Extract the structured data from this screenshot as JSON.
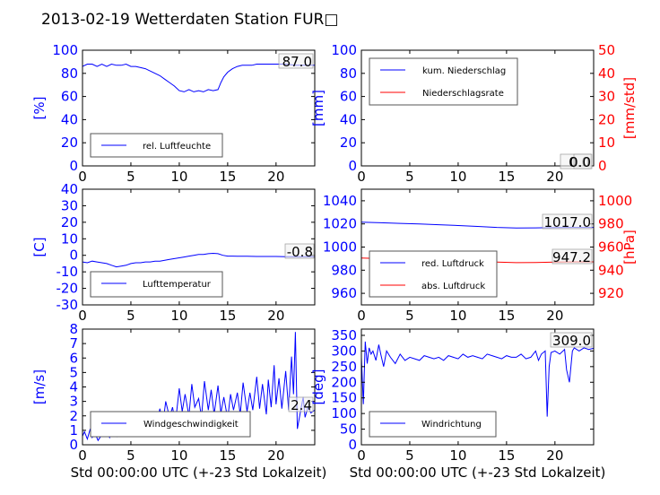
{
  "page_title": "2013-02-19 Wetterdaten Station FUR□",
  "colors": {
    "blue": "#0000ff",
    "red": "#ff0000",
    "black": "#000000"
  },
  "chart_data": [
    {
      "type": "line",
      "id": "humidity",
      "x_ticks": [
        0,
        5,
        10,
        15,
        20
      ],
      "xlim": [
        0,
        24
      ],
      "ylabel": "[%]",
      "ylim": [
        0,
        100
      ],
      "y_ticks": [
        0,
        20,
        40,
        60,
        80,
        100
      ],
      "last_value": "87.0",
      "legend_position": "lower-left",
      "series": [
        {
          "name": "rel. Luftfeuchte",
          "color": "#0000ff",
          "x": [
            0,
            0.5,
            1,
            1.5,
            2,
            2.5,
            3,
            3.5,
            4,
            4.5,
            5,
            5.5,
            6,
            6.5,
            7,
            7.5,
            8,
            8.5,
            9,
            9.5,
            10,
            10.5,
            11,
            11.5,
            12,
            12.5,
            13,
            13.5,
            14,
            14.3,
            14.6,
            15,
            15.5,
            16,
            16.5,
            17,
            17.5,
            18,
            18.5,
            19,
            19.5,
            20,
            21,
            22,
            23,
            24
          ],
          "y": [
            86,
            88,
            88,
            86,
            88,
            86,
            88,
            87,
            87,
            88,
            86,
            86,
            85,
            84,
            82,
            80,
            78,
            75,
            72,
            69,
            65,
            64,
            66,
            64,
            65,
            64,
            66,
            65,
            66,
            72,
            77,
            81,
            84,
            86,
            87,
            87,
            87,
            88,
            88,
            88,
            88,
            88,
            88,
            87,
            87,
            87
          ]
        }
      ]
    },
    {
      "type": "line",
      "id": "precipitation",
      "x_ticks": [
        0,
        5,
        10,
        15,
        20
      ],
      "xlim": [
        0,
        24
      ],
      "ylabel": "[mm]",
      "ylim": [
        0,
        100
      ],
      "y_ticks": [
        0,
        20,
        40,
        60,
        80,
        100
      ],
      "y2label": "[mm/std]",
      "y2lim": [
        0,
        50
      ],
      "y2_ticks": [
        0,
        10,
        20,
        30,
        40,
        50
      ],
      "last_value": "0.0",
      "last_value2": "0.0",
      "legend_position": "upper-left",
      "series": [
        {
          "name": "kum. Niederschlag",
          "color": "#0000ff",
          "axis": "left",
          "x": [
            0,
            24
          ],
          "y": [
            0,
            0
          ]
        },
        {
          "name": "Niederschlagsrate",
          "color": "#ff0000",
          "axis": "right",
          "x": [
            0,
            24
          ],
          "y": [
            0,
            0
          ]
        }
      ]
    },
    {
      "type": "line",
      "id": "temperature",
      "x_ticks": [
        0,
        5,
        10,
        15,
        20
      ],
      "xlim": [
        0,
        24
      ],
      "ylabel": "[C]",
      "ylim": [
        -30,
        40
      ],
      "y_ticks": [
        -30,
        -20,
        -10,
        0,
        10,
        20,
        30,
        40
      ],
      "last_value": "-0.8",
      "legend_position": "lower-left",
      "series": [
        {
          "name": "Lufttemperatur",
          "color": "#0000ff",
          "x": [
            0,
            0.5,
            1,
            1.5,
            2,
            2.5,
            3,
            3.5,
            4,
            4.5,
            5,
            5.5,
            6,
            6.5,
            7,
            7.5,
            8,
            8.5,
            9,
            9.5,
            10,
            10.5,
            11,
            11.5,
            12,
            12.5,
            13,
            13.5,
            14,
            14.5,
            15,
            15.5,
            16,
            17,
            18,
            19,
            20,
            21,
            22,
            23,
            24
          ],
          "y": [
            -4,
            -4.5,
            -3.5,
            -4,
            -4.5,
            -5,
            -6,
            -7,
            -6.5,
            -6,
            -5,
            -4.5,
            -4.5,
            -4,
            -4,
            -3.5,
            -3.5,
            -3,
            -2.5,
            -2,
            -1.5,
            -1,
            -0.5,
            0,
            0.5,
            0.5,
            1,
            1.2,
            1,
            0,
            -0.5,
            -0.5,
            -0.6,
            -0.6,
            -0.7,
            -0.7,
            -0.7,
            -0.8,
            -0.8,
            -0.8,
            -0.8
          ]
        }
      ]
    },
    {
      "type": "line",
      "id": "pressure",
      "x_ticks": [
        0,
        5,
        10,
        15,
        20
      ],
      "xlim": [
        0,
        24
      ],
      "ylabel": "",
      "ylim": [
        950,
        1050
      ],
      "y_ticks": [
        960,
        980,
        1000,
        1020,
        1040
      ],
      "y2label": "[hPa]",
      "y2lim": [
        910,
        1010
      ],
      "y2_ticks": [
        920,
        940,
        960,
        980,
        1000
      ],
      "last_value": "1017.0",
      "last_value2": "947.2",
      "legend_position": "lower-left",
      "series": [
        {
          "name": "red. Luftdruck",
          "color": "#0000ff",
          "axis": "left",
          "x": [
            0,
            2,
            4,
            6,
            8,
            10,
            12,
            14,
            16,
            18,
            20,
            22,
            24
          ],
          "y": [
            1021.5,
            1021,
            1020.5,
            1020,
            1019.3,
            1018.6,
            1017.8,
            1017,
            1016.5,
            1016.6,
            1016.8,
            1017,
            1017
          ]
        },
        {
          "name": "abs. Luftdruck",
          "color": "#ff0000",
          "axis": "right",
          "x": [
            0,
            2,
            4,
            6,
            8,
            10,
            12,
            14,
            16,
            18,
            20,
            22,
            24
          ],
          "y": [
            950.5,
            950,
            949.6,
            949.2,
            948.8,
            948.3,
            947.7,
            947,
            946.5,
            946.7,
            947,
            947.2,
            947.2
          ]
        }
      ]
    },
    {
      "type": "line",
      "id": "wind_speed",
      "x_ticks": [
        0,
        5,
        10,
        15,
        20
      ],
      "xlim": [
        0,
        24
      ],
      "ylabel": "[m/s]",
      "ylim": [
        0,
        8
      ],
      "y_ticks": [
        0,
        1,
        2,
        3,
        4,
        5,
        6,
        7,
        8
      ],
      "last_value": "2.4",
      "legend_position": "lower-left",
      "series": [
        {
          "name": "Windgeschwindigkeit",
          "color": "#0000ff",
          "x": [
            0,
            0.2,
            0.5,
            0.8,
            1,
            1.3,
            1.6,
            2,
            2.4,
            2.8,
            3.2,
            3.6,
            4,
            4.4,
            4.8,
            5.2,
            5.6,
            6,
            6.4,
            6.8,
            7.2,
            7.6,
            8,
            8.3,
            8.6,
            9,
            9.3,
            9.6,
            10,
            10.3,
            10.6,
            11,
            11.3,
            11.6,
            12,
            12.3,
            12.6,
            13,
            13.3,
            13.6,
            14,
            14.3,
            14.6,
            15,
            15.3,
            15.6,
            16,
            16.3,
            16.6,
            17,
            17.3,
            17.6,
            18,
            18.3,
            18.6,
            19,
            19.2,
            19.5,
            19.8,
            20,
            20.3,
            20.6,
            21,
            21.3,
            21.6,
            21.8,
            22,
            22.2,
            22.5,
            22.8,
            23,
            23.3,
            23.6,
            24
          ],
          "y": [
            0.6,
            0.9,
            0.4,
            1.1,
            0.5,
            0.8,
            0.3,
            0.7,
            1.2,
            0.5,
            1.3,
            0.6,
            1.6,
            0.9,
            1.4,
            1.1,
            1.7,
            0.8,
            2,
            1.2,
            1.8,
            1.3,
            2.5,
            1.4,
            3,
            1.9,
            2.6,
            1.5,
            3.9,
            2.3,
            3.5,
            2,
            4.2,
            2.6,
            3.2,
            1.9,
            4.4,
            2.4,
            3.8,
            2.1,
            4.1,
            2.2,
            3.3,
            1.8,
            3.5,
            2.4,
            3.6,
            2.1,
            4.3,
            2.3,
            3.6,
            2.4,
            4.7,
            2.5,
            4.2,
            2.1,
            4.5,
            2.6,
            5.5,
            2.8,
            4.6,
            2.5,
            5.1,
            2.4,
            6.1,
            3.5,
            7.8,
            1.1,
            2.2,
            3.3,
            1.9,
            2.6,
            2.2,
            2.4
          ]
        }
      ]
    },
    {
      "type": "line",
      "id": "wind_direction",
      "x_ticks": [
        0,
        5,
        10,
        15,
        20
      ],
      "xlim": [
        0,
        24
      ],
      "ylabel": "[deg]",
      "ylim": [
        0,
        370
      ],
      "y_ticks": [
        0,
        50,
        100,
        150,
        200,
        250,
        300,
        350
      ],
      "last_value": "309.0",
      "legend_position": "lower-left",
      "series": [
        {
          "name": "Windrichtung",
          "color": "#0000ff",
          "x": [
            0,
            0.2,
            0.4,
            0.6,
            0.8,
            1,
            1.2,
            1.5,
            1.8,
            2,
            2.3,
            2.6,
            3,
            3.5,
            4,
            4.5,
            5,
            5.5,
            6,
            6.5,
            7,
            7.5,
            8,
            8.5,
            9,
            9.5,
            10,
            10.5,
            11,
            11.5,
            12,
            12.5,
            13,
            13.5,
            14,
            14.5,
            15,
            15.5,
            16,
            16.5,
            17,
            17.5,
            18,
            18.3,
            18.6,
            19,
            19.2,
            19.4,
            19.6,
            20,
            20.5,
            21,
            21.2,
            21.5,
            21.8,
            22,
            22.5,
            23,
            23.5,
            24
          ],
          "y": [
            280,
            130,
            330,
            260,
            310,
            290,
            300,
            270,
            320,
            290,
            250,
            300,
            280,
            260,
            290,
            270,
            280,
            275,
            270,
            285,
            280,
            275,
            280,
            270,
            285,
            280,
            275,
            290,
            280,
            285,
            280,
            275,
            290,
            285,
            280,
            275,
            285,
            280,
            280,
            290,
            275,
            280,
            300,
            270,
            290,
            300,
            90,
            250,
            295,
            300,
            290,
            305,
            240,
            200,
            300,
            310,
            300,
            310,
            305,
            309
          ]
        }
      ]
    }
  ]
}
